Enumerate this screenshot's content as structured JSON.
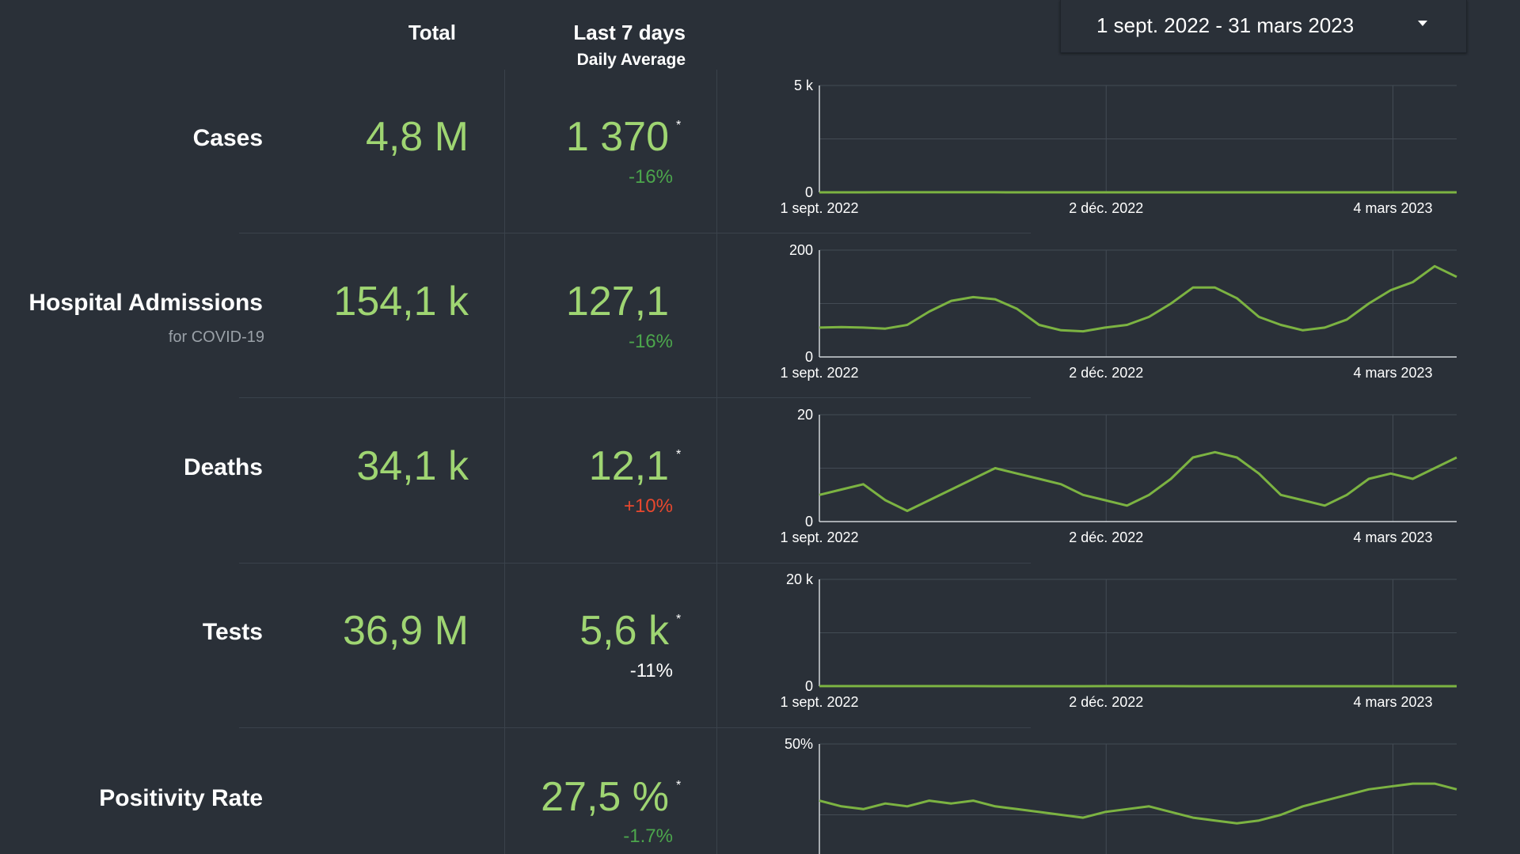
{
  "header": {
    "total": "Total",
    "last7": "Last 7 days",
    "daily_avg": "Daily Average"
  },
  "date_range": {
    "value": "1 sept. 2022 - 31 mars 2023",
    "icon": "caret-down-icon"
  },
  "colors": {
    "background": "#2a3038",
    "value_green": "#9fd572",
    "line_green": "#7cb342",
    "change_green": "#4ca64c",
    "change_red": "#e8482e"
  },
  "rows": [
    {
      "label": "Cases",
      "sublabel": "",
      "total": "4,8 M",
      "avg": "1 370",
      "star": "*",
      "change": "-16%",
      "change_color": "green"
    },
    {
      "label": "Hospital Admissions",
      "sublabel": "for COVID-19",
      "total": "154,1 k",
      "avg": "127,1",
      "star": "",
      "change": "-16%",
      "change_color": "green"
    },
    {
      "label": "Deaths",
      "sublabel": "",
      "total": "34,1 k",
      "avg": "12,1",
      "star": "*",
      "change": "+10%",
      "change_color": "red"
    },
    {
      "label": "Tests",
      "sublabel": "",
      "total": "36,9 M",
      "avg": "5,6 k",
      "star": "*",
      "change": "-11%",
      "change_color": "white"
    },
    {
      "label": "Positivity Rate",
      "sublabel": "",
      "total": "",
      "avg": "27,5 %",
      "star": "*",
      "change": "-1.7%",
      "change_color": "green"
    }
  ],
  "chart_data": [
    {
      "type": "line",
      "series": [
        {
          "values": [
            1.5,
            1.6,
            1.7,
            2.0,
            2.4,
            2.9,
            3.2,
            2.9,
            2.2,
            1.3,
            0.7,
            0.6,
            0.7,
            0.9,
            1.2,
            1.4,
            1.4,
            1.3,
            0.9,
            0.6,
            0.4,
            0.3,
            0.5,
            0.8,
            1.1,
            1.4,
            1.5,
            1.7,
            1.6,
            1.4
          ]
        }
      ],
      "x_ticks": [
        "1 sept. 2022",
        "2 déc. 2022",
        "4 mars 2023"
      ],
      "y_ticks": [
        "0",
        "5 k"
      ],
      "ylim": [
        0,
        5000
      ],
      "grid": true
    },
    {
      "type": "line",
      "series": [
        {
          "values": [
            55,
            56,
            55,
            53,
            60,
            85,
            105,
            112,
            108,
            90,
            60,
            50,
            48,
            55,
            60,
            75,
            100,
            130,
            130,
            110,
            75,
            60,
            50,
            55,
            70,
            100,
            125,
            140,
            170,
            150
          ]
        }
      ],
      "x_ticks": [
        "1 sept. 2022",
        "2 déc. 2022",
        "4 mars 2023"
      ],
      "y_ticks": [
        "0",
        "200"
      ],
      "ylim": [
        0,
        200
      ],
      "grid": true
    },
    {
      "type": "line",
      "series": [
        {
          "values": [
            5,
            6,
            7,
            4,
            2,
            4,
            6,
            8,
            10,
            9,
            8,
            7,
            5,
            4,
            3,
            5,
            8,
            12,
            13,
            12,
            9,
            5,
            4,
            3,
            5,
            8,
            9,
            8,
            10,
            12
          ]
        }
      ],
      "x_ticks": [
        "1 sept. 2022",
        "2 déc. 2022",
        "4 mars 2023"
      ],
      "y_ticks": [
        "0",
        "20"
      ],
      "ylim": [
        0,
        20
      ],
      "grid": true
    },
    {
      "type": "line",
      "series": [
        {
          "values": [
            7.5,
            8.2,
            9.0,
            10.5,
            12.5,
            13.2,
            12.0,
            9.5,
            6.5,
            5.5,
            5.5,
            6.0,
            7.0,
            7.5,
            8.5,
            9.5,
            8.5,
            6.5,
            5.0,
            4.5,
            4.8,
            5.2,
            5.5,
            5.8,
            6.0,
            5.8,
            5.8,
            6.0,
            6.0,
            5.5
          ]
        }
      ],
      "x_ticks": [
        "1 sept. 2022",
        "2 déc. 2022",
        "4 mars 2023"
      ],
      "y_ticks": [
        "0",
        "20 k"
      ],
      "ylim": [
        0,
        20000
      ],
      "grid": true
    },
    {
      "type": "line",
      "series": [
        {
          "values": [
            30,
            28,
            27,
            29,
            28,
            30,
            29,
            30,
            28,
            27,
            26,
            25,
            24,
            26,
            27,
            28,
            26,
            24,
            23,
            22,
            23,
            25,
            28,
            30,
            32,
            34,
            35,
            36,
            36,
            34
          ]
        }
      ],
      "x_ticks": [],
      "y_ticks": [
        "50%"
      ],
      "ylim": [
        0,
        50
      ],
      "grid": true
    }
  ]
}
